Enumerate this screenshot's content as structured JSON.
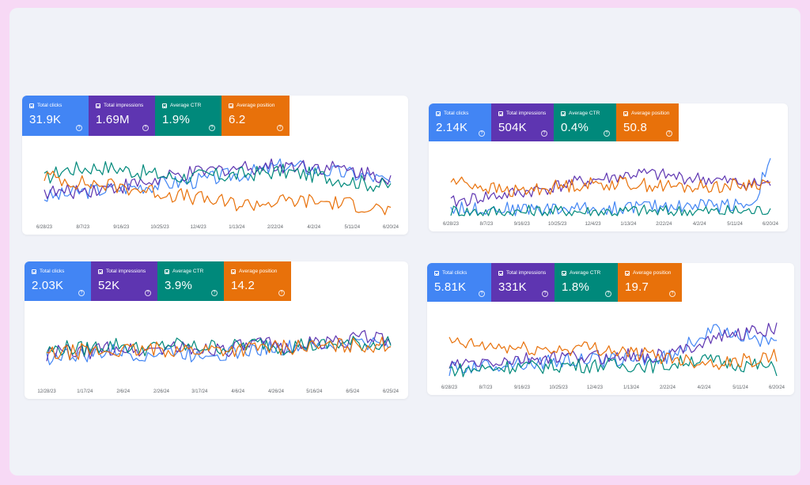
{
  "colors": {
    "clicks": "#4285f4",
    "impressions": "#5e35b1",
    "ctr": "#00897b",
    "position": "#e8710a"
  },
  "metric_labels": [
    "Total clicks",
    "Total impressions",
    "Average CTR",
    "Average position"
  ],
  "chart_data": [
    {
      "type": "line",
      "metrics": [
        {
          "name": "Total clicks",
          "value": "31.9K"
        },
        {
          "name": "Total impressions",
          "value": "1.69M"
        },
        {
          "name": "Average CTR",
          "value": "1.9%"
        },
        {
          "name": "Average position",
          "value": "6.2"
        }
      ],
      "x_ticks": [
        "6/28/23",
        "8/7/23",
        "9/16/23",
        "10/25/23",
        "12/4/23",
        "1/13/24",
        "2/22/24",
        "4/2/24",
        "5/11/24",
        "6/20/24"
      ],
      "series": [
        {
          "name": "Total clicks",
          "values": [
            0.3,
            0.33,
            0.38,
            0.4,
            0.42,
            0.45,
            0.47,
            0.5,
            0.52,
            0.55,
            0.6,
            0.63,
            0.68,
            0.74,
            0.72,
            0.68,
            0.65,
            0.62,
            0.58,
            0.5
          ]
        },
        {
          "name": "Total impressions",
          "values": [
            0.38,
            0.36,
            0.4,
            0.42,
            0.45,
            0.48,
            0.52,
            0.58,
            0.62,
            0.66,
            0.7,
            0.72,
            0.73,
            0.74,
            0.75,
            0.73,
            0.7,
            0.66,
            0.62,
            0.58
          ]
        },
        {
          "name": "Average CTR",
          "values": [
            0.55,
            0.68,
            0.7,
            0.72,
            0.7,
            0.66,
            0.62,
            0.58,
            0.58,
            0.6,
            0.6,
            0.62,
            0.64,
            0.66,
            0.63,
            0.6,
            0.56,
            0.52,
            0.48,
            0.45
          ]
        },
        {
          "name": "Average position",
          "values": [
            0.6,
            0.55,
            0.5,
            0.48,
            0.45,
            0.42,
            0.38,
            0.34,
            0.3,
            0.26,
            0.22,
            0.2,
            0.22,
            0.24,
            0.25,
            0.24,
            0.22,
            0.2,
            0.16,
            0.1
          ]
        }
      ]
    },
    {
      "type": "line",
      "metrics": [
        {
          "name": "Total clicks",
          "value": "2.14K"
        },
        {
          "name": "Total impressions",
          "value": "504K"
        },
        {
          "name": "Average CTR",
          "value": "0.4%"
        },
        {
          "name": "Average position",
          "value": "50.8"
        }
      ],
      "x_ticks": [
        "6/28/23",
        "8/7/23",
        "9/16/23",
        "10/25/23",
        "12/4/23",
        "1/13/24",
        "2/22/24",
        "4/2/24",
        "5/11/24",
        "6/20/24"
      ],
      "series": [
        {
          "name": "Total clicks",
          "values": [
            0.12,
            0.1,
            0.12,
            0.11,
            0.1,
            0.12,
            0.1,
            0.11,
            0.12,
            0.1,
            0.12,
            0.15,
            0.14,
            0.16,
            0.15,
            0.18,
            0.16,
            0.2,
            0.18,
            0.95
          ]
        },
        {
          "name": "Total impressions",
          "values": [
            0.2,
            0.25,
            0.3,
            0.32,
            0.36,
            0.4,
            0.45,
            0.5,
            0.55,
            0.58,
            0.62,
            0.66,
            0.65,
            0.62,
            0.6,
            0.58,
            0.55,
            0.52,
            0.5,
            0.5
          ]
        },
        {
          "name": "Average CTR",
          "values": [
            0.08,
            0.06,
            0.07,
            0.06,
            0.05,
            0.07,
            0.06,
            0.08,
            0.06,
            0.07,
            0.06,
            0.08,
            0.07,
            0.06,
            0.08,
            0.07,
            0.06,
            0.08,
            0.07,
            0.12
          ]
        },
        {
          "name": "Average position",
          "values": [
            0.55,
            0.52,
            0.45,
            0.4,
            0.38,
            0.42,
            0.45,
            0.48,
            0.5,
            0.5,
            0.52,
            0.5,
            0.48,
            0.46,
            0.45,
            0.46,
            0.47,
            0.48,
            0.5,
            0.52
          ]
        }
      ]
    },
    {
      "type": "line",
      "metrics": [
        {
          "name": "Total clicks",
          "value": "2.03K"
        },
        {
          "name": "Total impressions",
          "value": "52K"
        },
        {
          "name": "Average CTR",
          "value": "3.9%"
        },
        {
          "name": "Average position",
          "value": "14.2"
        }
      ],
      "x_ticks": [
        "12/28/23",
        "1/17/24",
        "2/6/24",
        "2/26/24",
        "3/17/24",
        "4/6/24",
        "4/26/24",
        "5/16/24",
        "6/5/24",
        "6/25/24"
      ],
      "series": [
        {
          "name": "Total clicks",
          "values": [
            0.35,
            0.4,
            0.38,
            0.42,
            0.45,
            0.4,
            0.42,
            0.45,
            0.4,
            0.44,
            0.42,
            0.45,
            0.5,
            0.48,
            0.52,
            0.5,
            0.54,
            0.56,
            0.58,
            0.6
          ]
        },
        {
          "name": "Total impressions",
          "values": [
            0.4,
            0.45,
            0.42,
            0.48,
            0.5,
            0.45,
            0.48,
            0.52,
            0.46,
            0.5,
            0.48,
            0.52,
            0.55,
            0.5,
            0.55,
            0.56,
            0.6,
            0.62,
            0.65,
            0.62
          ]
        },
        {
          "name": "Average CTR",
          "values": [
            0.45,
            0.5,
            0.48,
            0.52,
            0.55,
            0.48,
            0.5,
            0.55,
            0.5,
            0.52,
            0.5,
            0.54,
            0.56,
            0.5,
            0.55,
            0.52,
            0.55,
            0.56,
            0.55,
            0.58
          ]
        },
        {
          "name": "Average position",
          "values": [
            0.4,
            0.42,
            0.45,
            0.44,
            0.46,
            0.45,
            0.47,
            0.48,
            0.46,
            0.48,
            0.47,
            0.48,
            0.5,
            0.5,
            0.52,
            0.5,
            0.52,
            0.53,
            0.54,
            0.55
          ]
        }
      ]
    },
    {
      "type": "line",
      "metrics": [
        {
          "name": "Total clicks",
          "value": "5.81K"
        },
        {
          "name": "Total impressions",
          "value": "331K"
        },
        {
          "name": "Average CTR",
          "value": "1.8%"
        },
        {
          "name": "Average position",
          "value": "19.7"
        }
      ],
      "x_ticks": [
        "6/28/23",
        "8/7/23",
        "9/16/23",
        "10/25/23",
        "12/4/23",
        "1/13/24",
        "2/22/24",
        "4/2/24",
        "5/11/24",
        "6/20/24"
      ],
      "series": [
        {
          "name": "Total clicks",
          "values": [
            0.15,
            0.18,
            0.2,
            0.22,
            0.25,
            0.24,
            0.26,
            0.28,
            0.3,
            0.28,
            0.3,
            0.32,
            0.3,
            0.35,
            0.55,
            0.7,
            0.75,
            0.68,
            0.6,
            0.5
          ]
        },
        {
          "name": "Total impressions",
          "values": [
            0.2,
            0.22,
            0.25,
            0.26,
            0.28,
            0.3,
            0.32,
            0.32,
            0.34,
            0.33,
            0.35,
            0.36,
            0.34,
            0.38,
            0.5,
            0.6,
            0.65,
            0.7,
            0.72,
            0.75
          ]
        },
        {
          "name": "Average CTR",
          "values": [
            0.15,
            0.14,
            0.16,
            0.18,
            0.2,
            0.18,
            0.2,
            0.22,
            0.2,
            0.22,
            0.2,
            0.22,
            0.2,
            0.22,
            0.3,
            0.28,
            0.25,
            0.22,
            0.2,
            0.15
          ]
        },
        {
          "name": "Average position",
          "values": [
            0.55,
            0.52,
            0.5,
            0.48,
            0.46,
            0.45,
            0.44,
            0.46,
            0.48,
            0.46,
            0.42,
            0.38,
            0.35,
            0.32,
            0.28,
            0.26,
            0.25,
            0.28,
            0.3,
            0.35
          ]
        }
      ]
    }
  ]
}
